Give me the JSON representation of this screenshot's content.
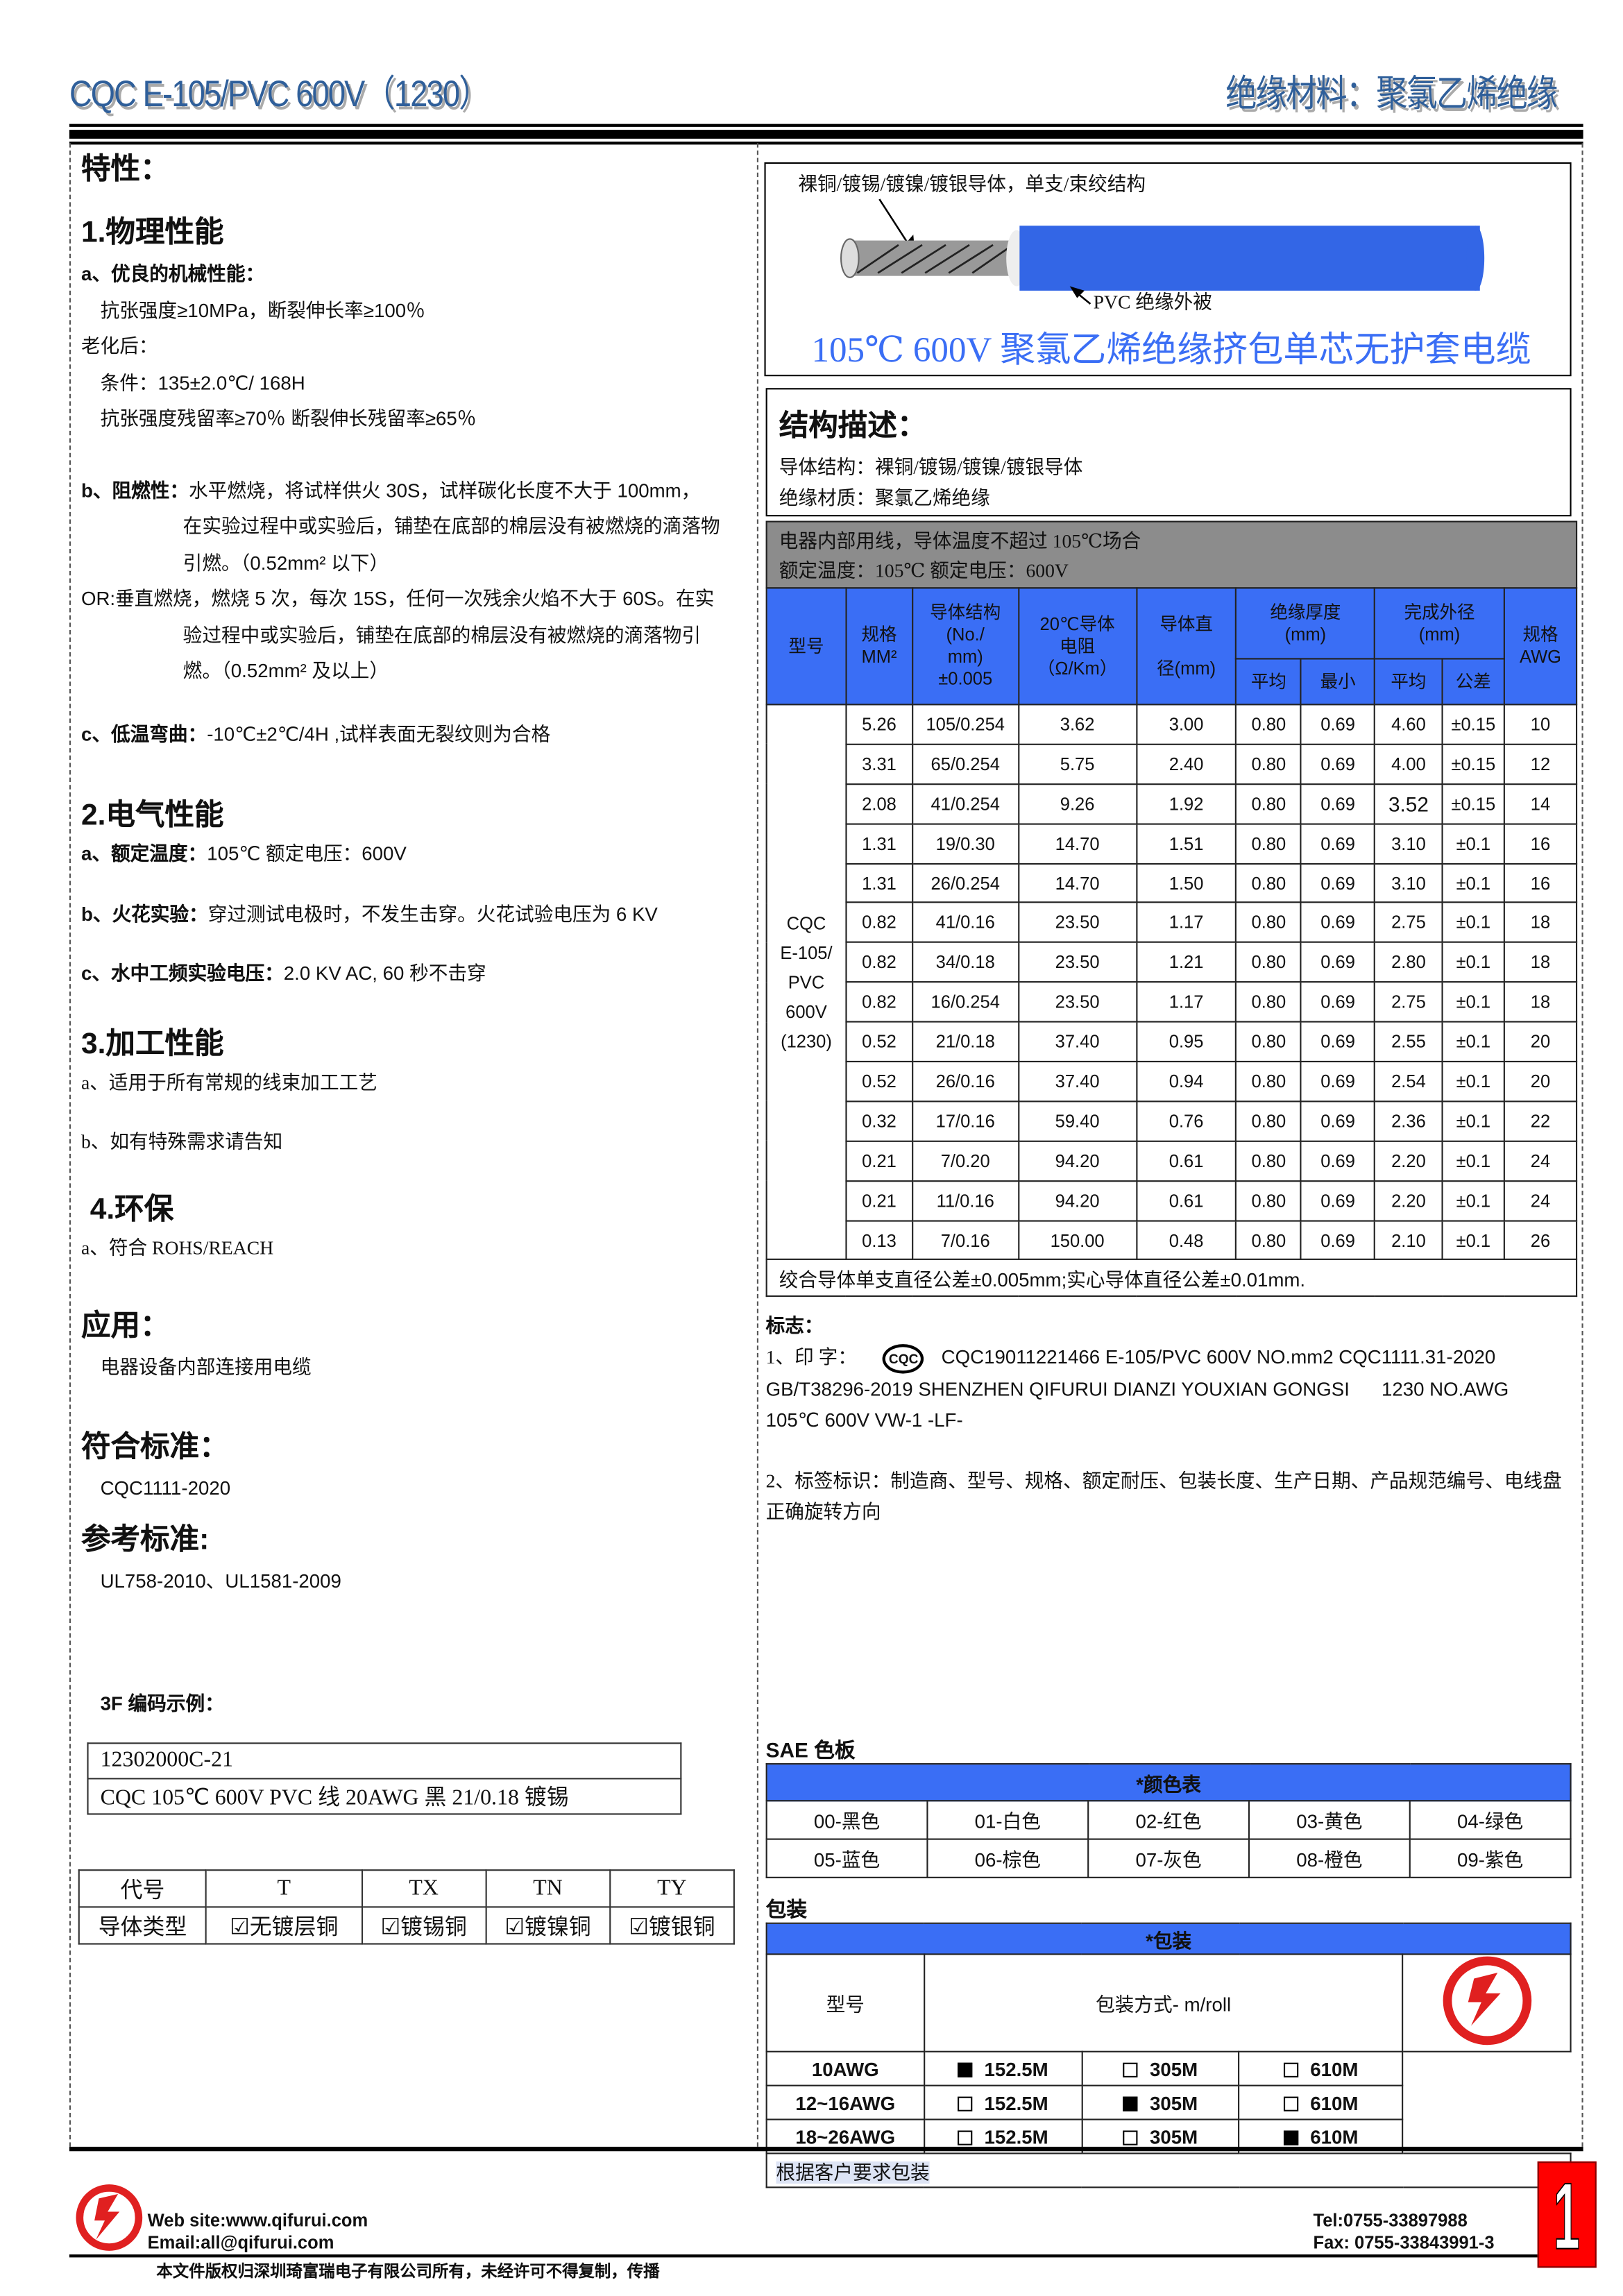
{
  "header": {
    "title_left": "CQC E-105/PVC 600V（1230）",
    "title_right": "绝缘材料：聚氯乙烯绝缘"
  },
  "left": {
    "features_title": "特性：",
    "physical": {
      "title": "1.物理性能",
      "a_label": "a、优良的机械性能：",
      "a_line1": "抗张强度≥10MPa，断裂伸长率≥100％",
      "aging": "老化后：",
      "cond": "条件：135±2.0℃/ 168H",
      "retention": "抗张强度残留率≥70％  断裂伸长残留率≥65％",
      "b_label": "b、阻燃性：",
      "b_text1": "水平燃烧，将试样供火 30S，试样碳化长度不大于 100mm，",
      "b_text2": "在实验过程中或实验后，铺垫在底部的棉层没有被燃烧的滴落物",
      "b_text3": "引燃。（0.52mm² 以下）",
      "or_text1": "OR:垂直燃烧，燃烧 5 次，每次 15S，任何一次残余火焰不大于 60S。在实",
      "or_text2": "验过程中或实验后，铺垫在底部的棉层没有被燃烧的滴落物引",
      "or_text3": "燃。（0.52mm² 及以上）",
      "c_label": "c、低温弯曲：",
      "c_text": "-10℃±2℃/4H ,试样表面无裂纹则为合格"
    },
    "electrical": {
      "title": "2.电气性能",
      "a_label": "a、额定温度：",
      "a_text": "105℃    额定电压：600V",
      "b_label": "b、火花实验：",
      "b_text": "穿过测试电极时，不发生击穿。火花试验电压为 6 KV",
      "c_label": "c、水中工频实验电压：",
      "c_text": "2.0 KV AC, 60 秒不击穿"
    },
    "processing": {
      "title": "3.加工性能",
      "a": "a、适用于所有常规的线束加工工艺",
      "b": "b、如有特殊需求请告知"
    },
    "env": {
      "title": "4.环保",
      "a": "a、符合 ROHS/REACH"
    },
    "application": {
      "title": "应用：",
      "text": "电器设备内部连接用电缆"
    },
    "standard": {
      "title": "符合标准：",
      "text": "CQC1111-2020"
    },
    "reference": {
      "title": "参考标准:",
      "text": "UL758-2010、UL1581-2009"
    },
    "code_example": {
      "title": "3F 编码示例：",
      "line1": "12302000C-21",
      "line2": "CQC 105℃  600V PVC 线    20AWG  黑  21/0.18 镀锡"
    },
    "conductor_table": {
      "headers": [
        "代号",
        "T",
        "TX",
        "TN",
        "TY"
      ],
      "row": [
        "导体类型",
        "☑无镀层铜",
        "☑镀锡铜",
        "☑镀镍铜",
        "☑镀银铜"
      ]
    }
  },
  "right": {
    "diagram": {
      "conductor_label": "裸铜/镀锡/镀镍/镀银导体，单支/束绞结构",
      "insulation_label": "PVC  绝缘外被",
      "product_title": "105℃  600V 聚氯乙烯绝缘挤包单芯无护套电缆",
      "insulation_color": "#3366e6"
    },
    "structure": {
      "title": "结构描述：",
      "conductor": "导体结构：裸铜/镀锡/镀镍/镀银导体",
      "insulation": "绝缘材质：聚氯乙烯绝缘"
    },
    "usage": {
      "line1": "电器内部用线，导体温度不超过 105℃场合",
      "line2": "额定温度：105℃  额定电压：600V"
    },
    "spec_table": {
      "headers": {
        "model": "型号",
        "size": "规格\nMM²",
        "structure": "导体结构\n(No./\nmm)\n±0.005",
        "resistance": "20℃导体\n电阻\n（Ω/Km）",
        "diameter": "导体直\n\n径(mm)",
        "insulation": "绝缘厚度\n(mm)",
        "outer": "完成外径\n(mm)",
        "awg": "规格\nAWG",
        "avg": "平均",
        "min": "最小",
        "avg2": "平均",
        "tol": "公差"
      },
      "model": "CQC\nE-105/\nPVC\n600V\n(1230)",
      "rows": [
        [
          "5.26",
          "105/0.254",
          "3.62",
          "3.00",
          "0.80",
          "0.69",
          "4.60",
          "±0.15",
          "10"
        ],
        [
          "3.31",
          "65/0.254",
          "5.75",
          "2.40",
          "0.80",
          "0.69",
          "4.00",
          "±0.15",
          "12"
        ],
        [
          "2.08",
          "41/0.254",
          "9.26",
          "1.92",
          "0.80",
          "0.69",
          "3.52",
          "±0.15",
          "14"
        ],
        [
          "1.31",
          "19/0.30",
          "14.70",
          "1.51",
          "0.80",
          "0.69",
          "3.10",
          "±0.1",
          "16"
        ],
        [
          "1.31",
          "26/0.254",
          "14.70",
          "1.50",
          "0.80",
          "0.69",
          "3.10",
          "±0.1",
          "16"
        ],
        [
          "0.82",
          "41/0.16",
          "23.50",
          "1.17",
          "0.80",
          "0.69",
          "2.75",
          "±0.1",
          "18"
        ],
        [
          "0.82",
          "34/0.18",
          "23.50",
          "1.21",
          "0.80",
          "0.69",
          "2.80",
          "±0.1",
          "18"
        ],
        [
          "0.82",
          "16/0.254",
          "23.50",
          "1.17",
          "0.80",
          "0.69",
          "2.75",
          "±0.1",
          "18"
        ],
        [
          "0.52",
          "21/0.18",
          "37.40",
          "0.95",
          "0.80",
          "0.69",
          "2.55",
          "±0.1",
          "20"
        ],
        [
          "0.52",
          "26/0.16",
          "37.40",
          "0.94",
          "0.80",
          "0.69",
          "2.54",
          "±0.1",
          "20"
        ],
        [
          "0.32",
          "17/0.16",
          "59.40",
          "0.76",
          "0.80",
          "0.69",
          "2.36",
          "±0.1",
          "22"
        ],
        [
          "0.21",
          "7/0.20",
          "94.20",
          "0.61",
          "0.80",
          "0.69",
          "2.20",
          "±0.1",
          "24"
        ],
        [
          "0.21",
          "11/0.16",
          "94.20",
          "0.61",
          "0.80",
          "0.69",
          "2.20",
          "±0.1",
          "24"
        ],
        [
          "0.13",
          "7/0.16",
          "150.00",
          "0.48",
          "0.80",
          "0.69",
          "2.10",
          "±0.1",
          "26"
        ]
      ],
      "footnote": "绞合导体单支直径公差±0.005mm;实心导体直径公差±0.01mm."
    },
    "marking": {
      "title": "标志：",
      "print_label": "1、印 字：",
      "cqc_logo": "CQC",
      "line1": "CQC19011221466  E-105/PVC  600V  NO.mm2  CQC1111.31-2020",
      "line2": "GB/T38296-2019 SHENZHEN QIFURUI DIANZI YOUXIAN GONGSI      1230 NO.AWG",
      "line3": "105℃  600V VW-1 -LF-",
      "label2": "2、标签标识：制造商、型号、规格、额定耐压、包装长度、生产日期、产品规范编号、电线盘正确旋转方向"
    },
    "colors": {
      "title": "SAE 色板",
      "table_title": "*颜色表",
      "items": [
        "00-黑色",
        "01-白色",
        "02-红色",
        "03-黄色",
        "04-绿色",
        "05-蓝色",
        "06-棕色",
        "07-灰色",
        "08-橙色",
        "09-紫色"
      ]
    },
    "packaging": {
      "title": "包装",
      "table_title": "*包装",
      "col_model": "型号",
      "col_method": "包装方式- m/roll",
      "rows": [
        {
          "model": "10AWG",
          "options": [
            {
              "label": "152.5M",
              "checked": true
            },
            {
              "label": "305M",
              "checked": false
            },
            {
              "label": "610M",
              "checked": false
            }
          ]
        },
        {
          "model": "12~16AWG",
          "options": [
            {
              "label": "152.5M",
              "checked": false
            },
            {
              "label": "305M",
              "checked": true
            },
            {
              "label": "610M",
              "checked": false
            }
          ]
        },
        {
          "model": "18~26AWG",
          "options": [
            {
              "label": "152.5M",
              "checked": false
            },
            {
              "label": "305M",
              "checked": false
            },
            {
              "label": "610M",
              "checked": true
            }
          ]
        }
      ],
      "note": "根据客户要求包装"
    }
  },
  "footer": {
    "website": "Web site:www.qifurui.com",
    "email": "Email:all@qifurui.com",
    "tel": "Tel:0755-33897988",
    "fax": "Fax: 0755-33843991-3",
    "copyright": "本文件版权归深圳琦富瑞电子有限公司所有，未经许可不得复制，传播",
    "page_number": "1",
    "brand_color": "#e02020",
    "accent_color": "#3a6ef5"
  }
}
